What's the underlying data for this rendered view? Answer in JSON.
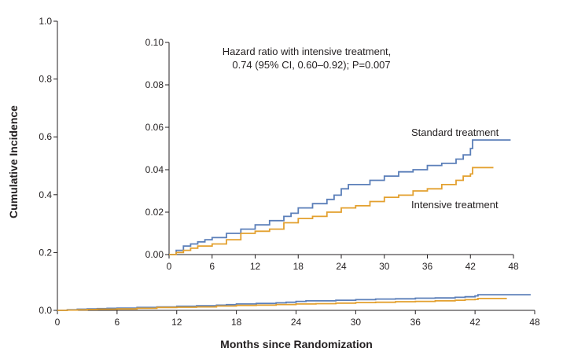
{
  "chart_data": [
    {
      "name": "main",
      "type": "line",
      "step": true,
      "xlabel": "Months since Randomization",
      "ylabel": "Cumulative Incidence",
      "xlim": [
        0,
        48
      ],
      "ylim": [
        0,
        1.0
      ],
      "x_ticks": [
        0,
        6,
        12,
        18,
        24,
        30,
        36,
        42,
        48
      ],
      "x_tick_labels": [
        "0",
        "6",
        "12",
        "18",
        "24",
        "30",
        "36",
        "42",
        "48"
      ],
      "y_ticks": [
        0,
        0.2,
        0.4,
        0.6,
        0.8,
        1.0
      ],
      "y_tick_labels": [
        "0.0",
        "0.2",
        "0.4",
        "0.6",
        "0.8",
        "1.0"
      ],
      "grid": false,
      "series": [
        {
          "name": "Standard treatment",
          "color": "#5b7fb9",
          "x": [
            0,
            1,
            2,
            3,
            4,
            5,
            6,
            8,
            10,
            12,
            14,
            16,
            17,
            18,
            20,
            22,
            23,
            24,
            25,
            26,
            28,
            30,
            32,
            34,
            36,
            38,
            40,
            41,
            42,
            42.3,
            44,
            46,
            47.6
          ],
          "y": [
            0,
            0.002,
            0.004,
            0.005,
            0.006,
            0.007,
            0.008,
            0.01,
            0.012,
            0.014,
            0.016,
            0.018,
            0.0195,
            0.022,
            0.024,
            0.026,
            0.028,
            0.031,
            0.033,
            0.033,
            0.035,
            0.037,
            0.039,
            0.04,
            0.042,
            0.043,
            0.045,
            0.047,
            0.05,
            0.054,
            0.054,
            0.054,
            0.054
          ]
        },
        {
          "name": "Intensive treatment",
          "color": "#e3a02f",
          "x": [
            0,
            1,
            2,
            3,
            4,
            6,
            8,
            10,
            12,
            14,
            16,
            18,
            20,
            22,
            24,
            26,
            28,
            30,
            32,
            34,
            36,
            38,
            40,
            41,
            42,
            42.3,
            44,
            45.2
          ],
          "y": [
            0,
            0.001,
            0.002,
            0.003,
            0.004,
            0.005,
            0.007,
            0.01,
            0.011,
            0.012,
            0.015,
            0.017,
            0.018,
            0.02,
            0.022,
            0.023,
            0.025,
            0.027,
            0.028,
            0.03,
            0.031,
            0.033,
            0.035,
            0.037,
            0.038,
            0.041,
            0.041,
            0.041
          ]
        }
      ]
    },
    {
      "name": "inset",
      "type": "line",
      "step": true,
      "xlim": [
        0,
        48
      ],
      "ylim": [
        0,
        0.1
      ],
      "x_ticks": [
        0,
        6,
        12,
        18,
        24,
        30,
        36,
        42,
        48
      ],
      "x_tick_labels": [
        "0",
        "6",
        "12",
        "18",
        "24",
        "30",
        "36",
        "42",
        "48"
      ],
      "y_ticks": [
        0,
        0.02,
        0.04,
        0.06,
        0.08,
        0.1
      ],
      "y_tick_labels": [
        "0.00",
        "0.02",
        "0.04",
        "0.06",
        "0.08",
        "0.10"
      ],
      "grid": false,
      "annotation": [
        "Hazard ratio with intensive treatment,",
        "0.74 (95% CI, 0.60–0.92); P=0.007"
      ],
      "series_labels": [
        "Standard treatment",
        "Intensive treatment"
      ]
    }
  ]
}
